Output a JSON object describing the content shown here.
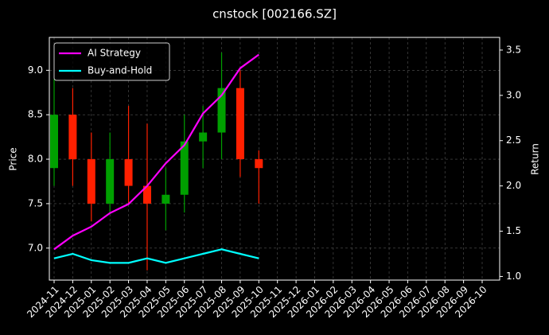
{
  "chart_data": {
    "type": "candlestick",
    "title": "cnstock [002166.SZ]",
    "ylabel": "Price",
    "y2label": "Return",
    "x": [
      "2024-11",
      "2024-12",
      "2025-01",
      "2025-02",
      "2025-03",
      "2025-04",
      "2025-05",
      "2025-06",
      "2025-07",
      "2025-08",
      "2025-09",
      "2025-10"
    ],
    "open": [
      7.9,
      8.5,
      8.0,
      7.5,
      8.0,
      7.7,
      7.5,
      7.6,
      8.2,
      8.3,
      8.8,
      8.0
    ],
    "high": [
      8.9,
      8.8,
      8.3,
      8.3,
      8.6,
      8.4,
      7.9,
      8.5,
      8.6,
      9.2,
      9.0,
      8.1
    ],
    "low": [
      7.7,
      7.7,
      7.3,
      7.4,
      7.5,
      6.75,
      7.2,
      7.4,
      7.9,
      8.0,
      7.8,
      7.5
    ],
    "close": [
      8.5,
      8.0,
      7.5,
      8.0,
      7.7,
      7.5,
      7.6,
      8.2,
      8.3,
      8.8,
      8.0,
      7.9
    ],
    "up_color": "#00a000",
    "down_color": "#ff2000",
    "series": [
      {
        "name": "AI Strategy",
        "color": "#ff00ff",
        "axis": "y2",
        "values": [
          1.3,
          1.45,
          1.55,
          1.7,
          1.8,
          2.0,
          2.25,
          2.45,
          2.8,
          3.0,
          3.3,
          3.45
        ]
      },
      {
        "name": "Buy-and-Hold",
        "color": "#00ffff",
        "axis": "y2",
        "values": [
          1.2,
          1.25,
          1.18,
          1.15,
          1.15,
          1.2,
          1.15,
          1.2,
          1.25,
          1.3,
          1.25,
          1.2
        ]
      }
    ],
    "xlim": [
      "2024-11",
      "2026-10"
    ],
    "xticks": [
      "2024-11",
      "2024-12",
      "2025-01",
      "2025-02",
      "2025-03",
      "2025-04",
      "2025-05",
      "2025-06",
      "2025-07",
      "2025-08",
      "2025-09",
      "2025-10",
      "2025-11",
      "2025-12",
      "2026-01",
      "2026-02",
      "2026-03",
      "2026-04",
      "2026-05",
      "2026-06",
      "2026-07",
      "2026-08",
      "2026-09",
      "2026-10"
    ],
    "ylim": [
      6.64,
      9.37
    ],
    "yticks": [
      {
        "value": 7,
        "label": "7.0"
      },
      7.5,
      {
        "value": 8,
        "label": "8.0"
      },
      8.5,
      {
        "value": 9,
        "label": "9.0"
      }
    ],
    "y2lim": [
      0.96,
      3.64
    ],
    "y2ticks": [
      {
        "value": 1,
        "label": "1.0"
      },
      1.5,
      {
        "value": 2,
        "label": "2.0"
      },
      2.5,
      {
        "value": 3,
        "label": "3.0"
      },
      3.5
    ],
    "grid": true,
    "legend": "upper left"
  }
}
